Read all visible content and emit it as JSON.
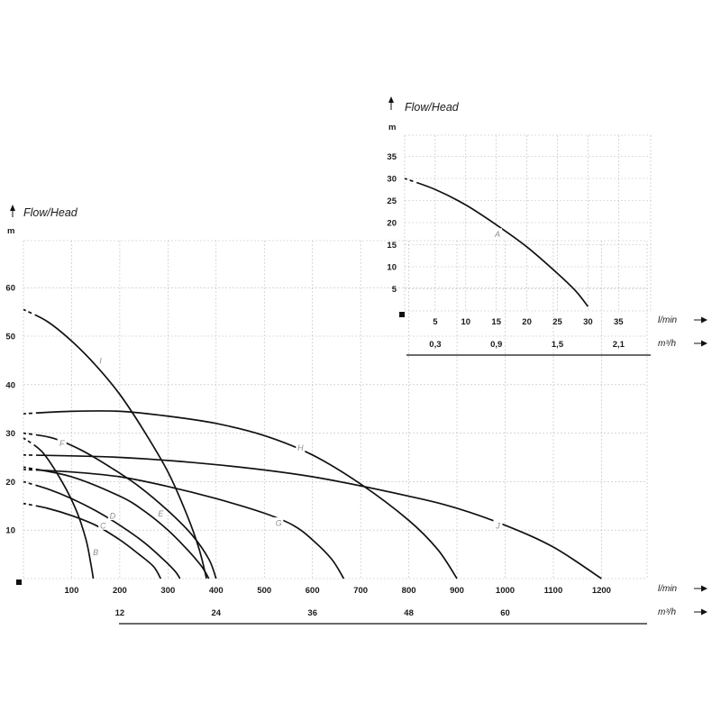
{
  "chart_data": [
    {
      "type": "line",
      "title": "Flow/Head",
      "ylabel": "m",
      "xlabel": "l/min",
      "secondary_xlabel": "m³/h",
      "xlim": [
        0,
        1320
      ],
      "ylim": [
        0,
        70
      ],
      "x_ticks": [
        100,
        200,
        300,
        400,
        500,
        600,
        700,
        800,
        900,
        1000,
        1100,
        1200
      ],
      "y_ticks": [
        10,
        20,
        30,
        40,
        50,
        60
      ],
      "secondary_ticks": [
        {
          "label": "12",
          "lmin": 200
        },
        {
          "label": "24",
          "lmin": 400
        },
        {
          "label": "36",
          "lmin": 600
        },
        {
          "label": "48",
          "lmin": 800
        },
        {
          "label": "60",
          "lmin": 1000
        }
      ],
      "grid": true,
      "series": [
        {
          "name": "B",
          "label_at": [
            150,
            5.5
          ],
          "points": [
            [
              0,
              29
            ],
            [
              40,
              26
            ],
            [
              80,
              20
            ],
            [
              110,
              14
            ],
            [
              130,
              8
            ],
            [
              140,
              3
            ],
            [
              145,
              0
            ]
          ]
        },
        {
          "name": "C",
          "label_at": [
            165,
            11
          ],
          "points": [
            [
              0,
              15.5
            ],
            [
              50,
              14.5
            ],
            [
              100,
              13
            ],
            [
              150,
              11
            ],
            [
              200,
              8
            ],
            [
              240,
              5
            ],
            [
              270,
              2.5
            ],
            [
              285,
              0
            ]
          ]
        },
        {
          "name": "D",
          "label_at": [
            185,
            13
          ],
          "points": [
            [
              0,
              20
            ],
            [
              50,
              18.5
            ],
            [
              100,
              16.5
            ],
            [
              150,
              14
            ],
            [
              200,
              11
            ],
            [
              250,
              7.5
            ],
            [
              290,
              4
            ],
            [
              315,
              1.5
            ],
            [
              325,
              0
            ]
          ]
        },
        {
          "name": "E",
          "label_at": [
            285,
            13.5
          ],
          "points": [
            [
              0,
              23
            ],
            [
              100,
              21
            ],
            [
              200,
              17
            ],
            [
              250,
              14
            ],
            [
              300,
              10
            ],
            [
              340,
              6
            ],
            [
              370,
              2.5
            ],
            [
              385,
              0
            ]
          ]
        },
        {
          "name": "F",
          "label_at": [
            80,
            28
          ],
          "points": [
            [
              0,
              30
            ],
            [
              60,
              29
            ],
            [
              120,
              26.5
            ],
            [
              180,
              23
            ],
            [
              240,
              19
            ],
            [
              300,
              14
            ],
            [
              350,
              9
            ],
            [
              385,
              4
            ],
            [
              400,
              0
            ]
          ]
        },
        {
          "name": "G",
          "label_at": [
            530,
            11.5
          ],
          "points": [
            [
              0,
              22.5
            ],
            [
              100,
              22
            ],
            [
              200,
              21
            ],
            [
              300,
              19
            ],
            [
              400,
              16.5
            ],
            [
              500,
              13.5
            ],
            [
              560,
              11
            ],
            [
              600,
              8
            ],
            [
              640,
              4
            ],
            [
              665,
              0
            ]
          ]
        },
        {
          "name": "H",
          "label_at": [
            575,
            27
          ],
          "points": [
            [
              0,
              34
            ],
            [
              100,
              34.5
            ],
            [
              200,
              34.5
            ],
            [
              300,
              33.5
            ],
            [
              400,
              32
            ],
            [
              500,
              29.5
            ],
            [
              600,
              25.5
            ],
            [
              700,
              19.5
            ],
            [
              800,
              12
            ],
            [
              860,
              6
            ],
            [
              900,
              0
            ]
          ]
        },
        {
          "name": "I",
          "label_at": [
            160,
            45
          ],
          "points": [
            [
              0,
              55.5
            ],
            [
              50,
              53
            ],
            [
              100,
              49
            ],
            [
              150,
              44
            ],
            [
              200,
              38
            ],
            [
              250,
              30.5
            ],
            [
              300,
              22
            ],
            [
              340,
              13
            ],
            [
              365,
              6
            ],
            [
              380,
              0
            ]
          ]
        },
        {
          "name": "J",
          "label_at": [
            985,
            11
          ],
          "points": [
            [
              0,
              25.5
            ],
            [
              200,
              25
            ],
            [
              400,
              23.5
            ],
            [
              600,
              21
            ],
            [
              800,
              17
            ],
            [
              900,
              14.5
            ],
            [
              1000,
              11
            ],
            [
              1100,
              6.5
            ],
            [
              1200,
              0
            ]
          ]
        }
      ]
    },
    {
      "type": "line",
      "title": "Flow/Head",
      "ylabel": "m",
      "xlabel": "l/min",
      "secondary_xlabel": "m³/h",
      "xlim": [
        0,
        40
      ],
      "ylim": [
        0,
        40
      ],
      "x_ticks": [
        5,
        10,
        15,
        20,
        25,
        30,
        35
      ],
      "y_ticks": [
        5,
        10,
        15,
        20,
        25,
        30,
        35
      ],
      "secondary_ticks": [
        {
          "label": "0,3",
          "lmin": 5
        },
        {
          "label": "0,9",
          "lmin": 15
        },
        {
          "label": "1,5",
          "lmin": 25
        },
        {
          "label": "2,1",
          "lmin": 35
        }
      ],
      "grid": true,
      "series": [
        {
          "name": "A",
          "label_at": [
            15.2,
            17.5
          ],
          "points": [
            [
              0,
              30
            ],
            [
              5,
              27.5
            ],
            [
              10,
              24
            ],
            [
              15,
              19.5
            ],
            [
              20,
              14.5
            ],
            [
              25,
              8.5
            ],
            [
              28,
              4.5
            ],
            [
              30,
              1
            ]
          ]
        }
      ]
    }
  ]
}
